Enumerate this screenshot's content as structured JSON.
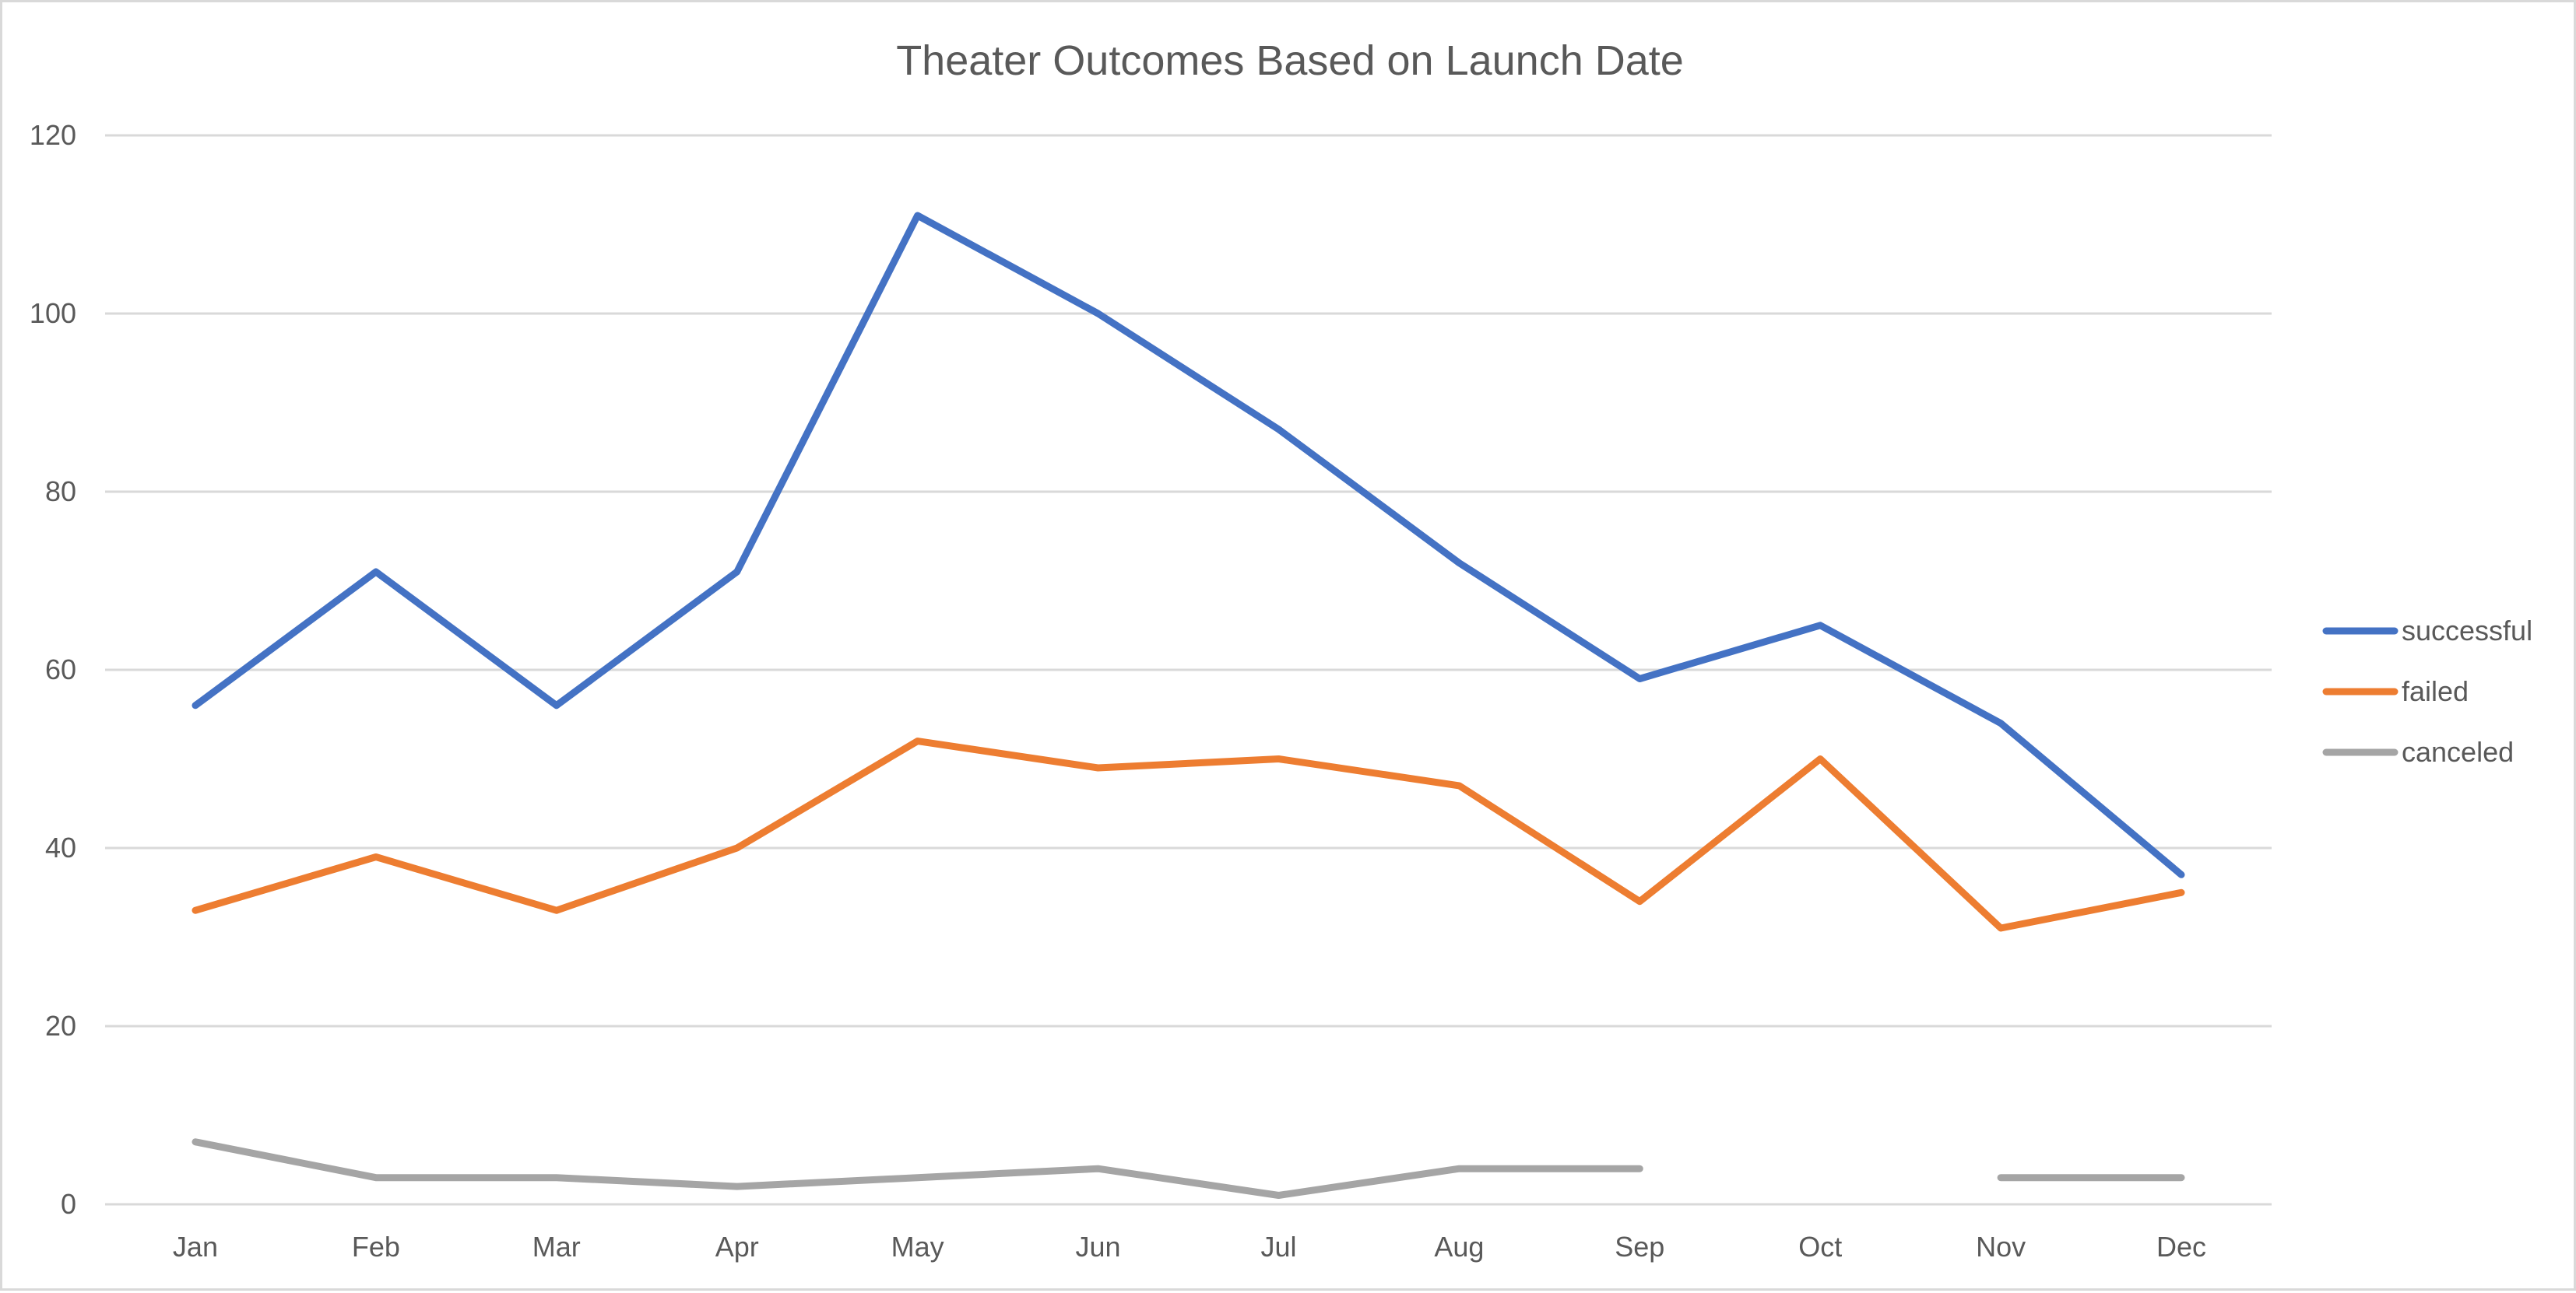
{
  "chart_data": {
    "type": "line",
    "title": "Theater Outcomes Based on Launch Date",
    "xlabel": "",
    "ylabel": "",
    "categories": [
      "Jan",
      "Feb",
      "Mar",
      "Apr",
      "May",
      "Jun",
      "Jul",
      "Aug",
      "Sep",
      "Oct",
      "Nov",
      "Dec"
    ],
    "ylim": [
      0,
      120
    ],
    "yticks": [
      0,
      20,
      40,
      60,
      80,
      100,
      120
    ],
    "grid": true,
    "legend_position": "right",
    "series": [
      {
        "name": "successful",
        "color": "#4472C4",
        "values": [
          56,
          71,
          56,
          71,
          111,
          100,
          87,
          72,
          59,
          65,
          54,
          37
        ]
      },
      {
        "name": "failed",
        "color": "#ED7D31",
        "values": [
          33,
          39,
          33,
          40,
          52,
          49,
          50,
          47,
          34,
          50,
          31,
          35
        ]
      },
      {
        "name": "canceled",
        "color": "#A5A5A5",
        "values": [
          7,
          3,
          3,
          2,
          3,
          4,
          1,
          4,
          4,
          null,
          3,
          3
        ]
      }
    ]
  }
}
